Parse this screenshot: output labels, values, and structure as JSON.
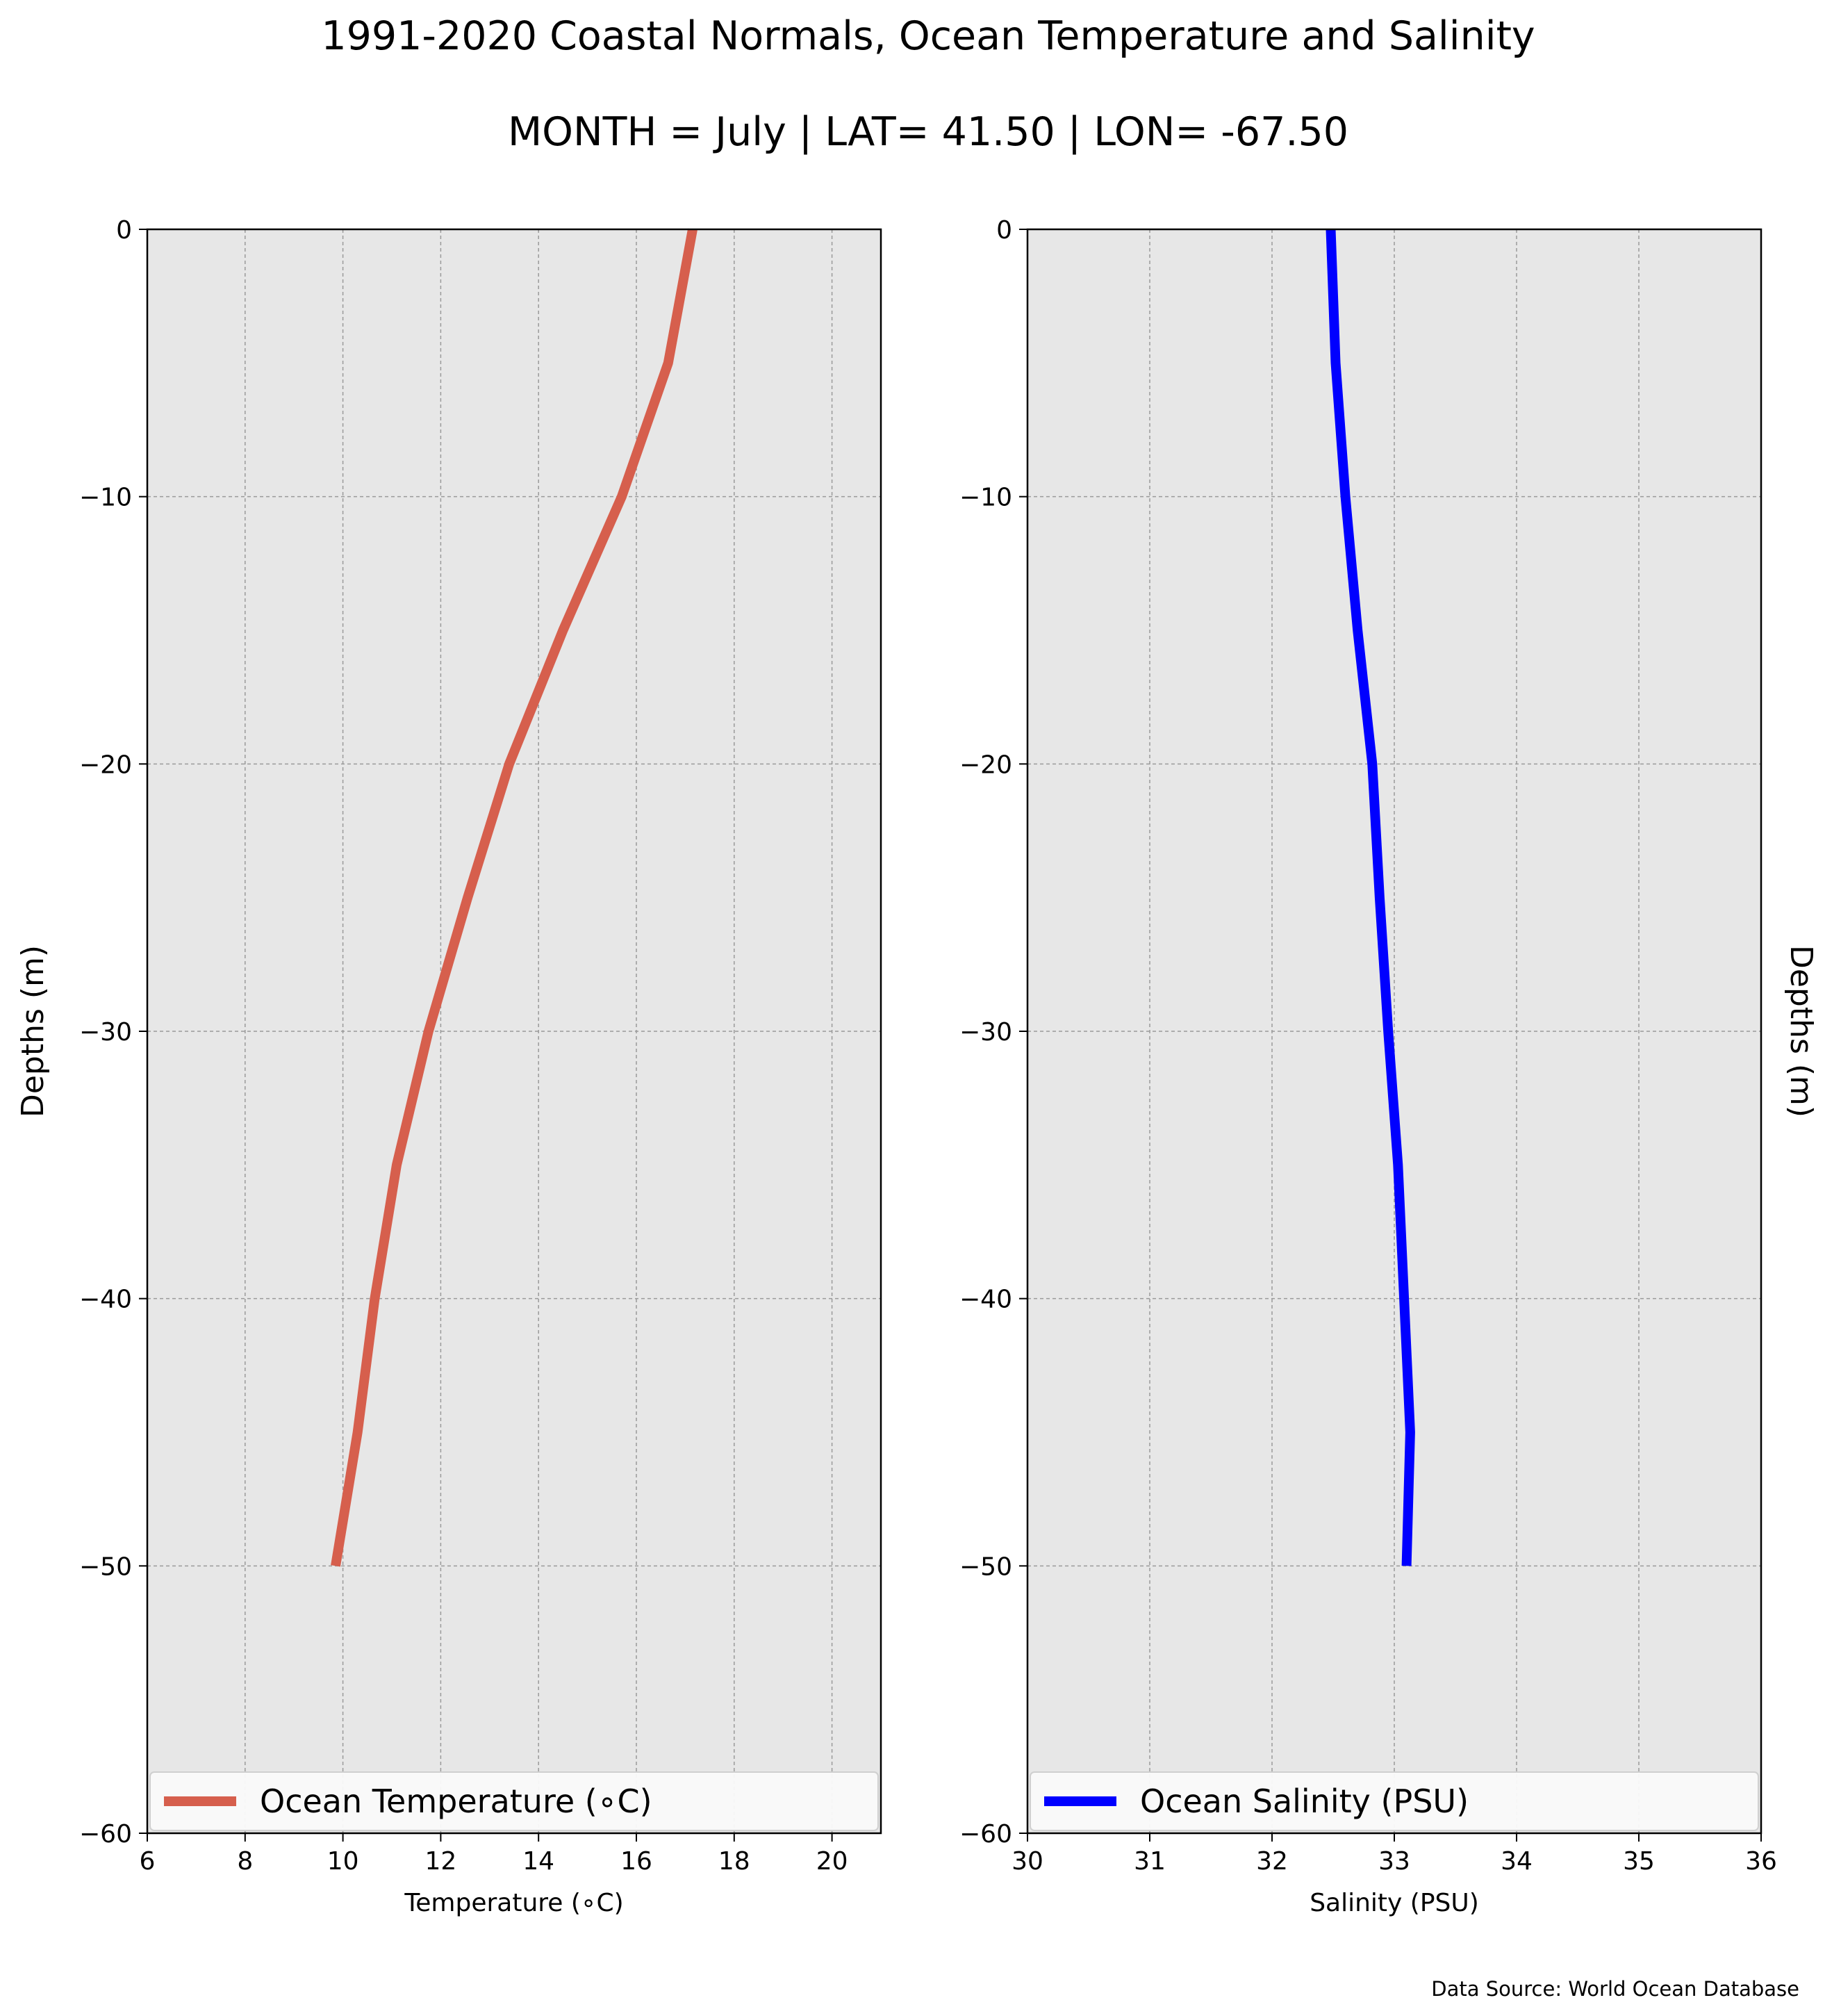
{
  "title": "1991-2020 Coastal Normals, Ocean Temperature and Salinity",
  "subtitle": "MONTH = July | LAT= 41.50 | LON= -67.50",
  "source": "Data Source: World Ocean Database",
  "chart_data": [
    {
      "type": "line",
      "xlabel": "Temperature (∘C)",
      "ylabel": "Depths (m)",
      "xlim": [
        6,
        21
      ],
      "ylim": [
        -60,
        0
      ],
      "xticks": [
        6,
        8,
        10,
        12,
        14,
        16,
        18,
        20
      ],
      "yticks": [
        0,
        -10,
        -20,
        -30,
        -40,
        -50,
        -60
      ],
      "grid": true,
      "legend_position": "lower center",
      "series": [
        {
          "name": "Ocean Temperature (∘C)",
          "color": "#d65f4d",
          "x": [
            17.15,
            16.65,
            15.7,
            14.5,
            13.4,
            12.55,
            11.75,
            11.1,
            10.65,
            10.3,
            9.85
          ],
          "y": [
            0,
            -5,
            -10,
            -15,
            -20,
            -25,
            -30,
            -35,
            -40,
            -45,
            -50
          ]
        }
      ]
    },
    {
      "type": "line",
      "xlabel": "Salinity (PSU)",
      "ylabel": "Depths (m)",
      "xlim": [
        30,
        36
      ],
      "ylim": [
        -60,
        0
      ],
      "xticks": [
        30,
        31,
        32,
        33,
        34,
        35,
        36
      ],
      "yticks": [
        0,
        -10,
        -20,
        -30,
        -40,
        -50,
        -60
      ],
      "grid": true,
      "legend_position": "lower center",
      "series": [
        {
          "name": "Ocean Salinity (PSU)",
          "color": "#0000ff",
          "x": [
            32.48,
            32.52,
            32.6,
            32.7,
            32.82,
            32.88,
            32.95,
            33.03,
            33.08,
            33.13,
            33.1
          ],
          "y": [
            0,
            -5,
            -10,
            -15,
            -20,
            -25,
            -30,
            -35,
            -40,
            -45,
            -50
          ]
        }
      ]
    }
  ]
}
